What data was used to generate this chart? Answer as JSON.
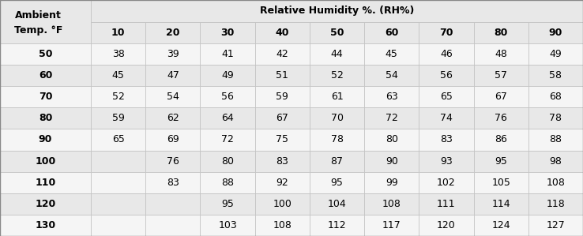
{
  "col_header_line1": "Relative Humidity %. (RH%)",
  "col_headers": [
    "10",
    "20",
    "30",
    "40",
    "50",
    "60",
    "70",
    "80",
    "90"
  ],
  "row_header_label": "Ambient\nTemp. °F",
  "row_labels": [
    "50",
    "60",
    "70",
    "80",
    "90",
    "100",
    "110",
    "120",
    "130"
  ],
  "table_data": [
    [
      "38",
      "39",
      "41",
      "42",
      "44",
      "45",
      "46",
      "48",
      "49"
    ],
    [
      "45",
      "47",
      "49",
      "51",
      "52",
      "54",
      "56",
      "57",
      "58"
    ],
    [
      "52",
      "54",
      "56",
      "59",
      "61",
      "63",
      "65",
      "67",
      "68"
    ],
    [
      "59",
      "62",
      "64",
      "67",
      "70",
      "72",
      "74",
      "76",
      "78"
    ],
    [
      "65",
      "69",
      "72",
      "75",
      "78",
      "80",
      "83",
      "86",
      "88"
    ],
    [
      "",
      "76",
      "80",
      "83",
      "87",
      "90",
      "93",
      "95",
      "98"
    ],
    [
      "",
      "83",
      "88",
      "92",
      "95",
      "99",
      "102",
      "105",
      "108"
    ],
    [
      "",
      "",
      "95",
      "100",
      "104",
      "108",
      "111",
      "114",
      "118"
    ],
    [
      "",
      "",
      "103",
      "108",
      "112",
      "117",
      "120",
      "124",
      "127"
    ]
  ],
  "bg_color": "#e8e8e8",
  "row_bg_even": "#f5f5f5",
  "row_bg_odd": "#e8e8e8",
  "header_bg": "#e0e0e0",
  "border_color": "#c0c0c0",
  "text_color": "#000000",
  "font_size": 9,
  "header_font_size": 9,
  "bold_font_size": 9
}
